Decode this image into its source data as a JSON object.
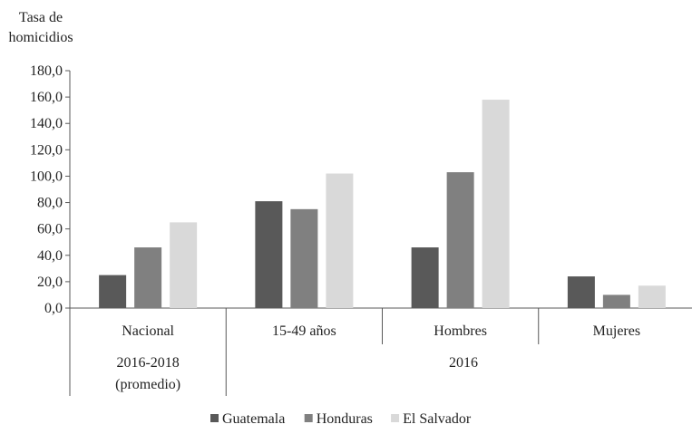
{
  "chart_data": {
    "type": "bar",
    "ylabel_lines": [
      "Tasa de",
      "homicidios"
    ],
    "ylim": [
      0,
      180
    ],
    "ytick_step": 20,
    "ytick_labels": [
      "0,0",
      "20,0",
      "40,0",
      "60,0",
      "80,0",
      "100,0",
      "120,0",
      "140,0",
      "160,0",
      "180,0"
    ],
    "categories": [
      "Nacional",
      "15-49 años",
      "Hombres",
      "Mujeres"
    ],
    "group_labels": [
      {
        "lines": [
          "2016-2018",
          "(promedio)"
        ]
      },
      {
        "lines": [
          "2016"
        ]
      }
    ],
    "series": [
      {
        "name": "Guatemala",
        "color": "#595959",
        "values": [
          25,
          81,
          46,
          24
        ]
      },
      {
        "name": "Honduras",
        "color": "#808080",
        "values": [
          46,
          75,
          103,
          10
        ]
      },
      {
        "name": "El Salvador",
        "color": "#d9d9d9",
        "values": [
          65,
          102,
          158,
          17
        ]
      }
    ],
    "legend_position": "bottom",
    "grid": false
  }
}
